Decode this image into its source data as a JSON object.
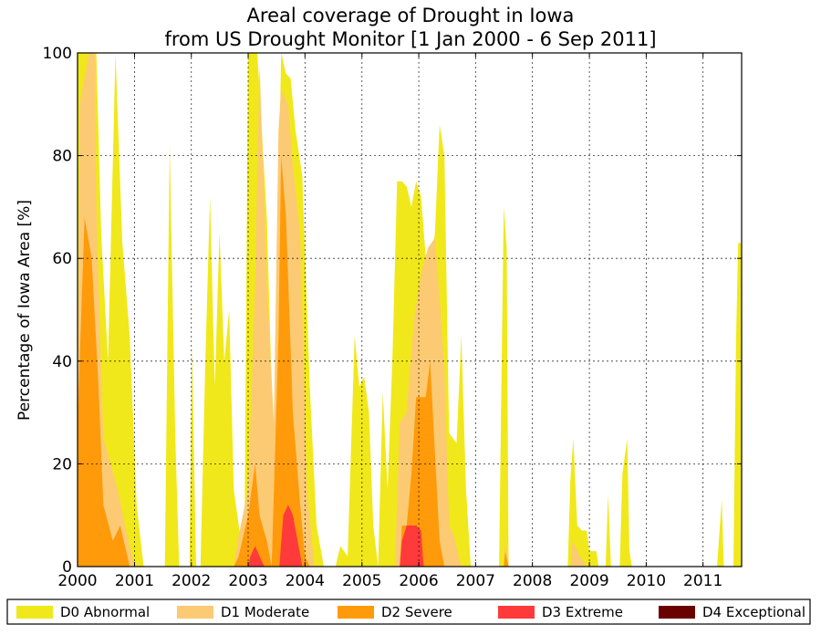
{
  "chart_data": {
    "type": "area",
    "title": "Areal coverage of Drought in Iowa",
    "subtitle": "from US Drought Monitor [1 Jan 2000 - 6 Sep 2011]",
    "ylabel": "Percentage of Iowa Area [%]",
    "xlabel": "",
    "xlim": [
      "2000-01-01",
      "2011-09-06"
    ],
    "ylim": [
      0,
      100
    ],
    "x_ticks": [
      "2000",
      "2001",
      "2002",
      "2003",
      "2004",
      "2005",
      "2006",
      "2007",
      "2008",
      "2009",
      "2010",
      "2011"
    ],
    "y_ticks": [
      "0",
      "20",
      "40",
      "60",
      "80",
      "100"
    ],
    "grid": true,
    "legend_position": "bottom",
    "series": [
      {
        "name": "D0 Abnormal",
        "color": "#f0e81a",
        "points": [
          [
            "2000-01-01",
            100
          ],
          [
            "2000-05-01",
            100
          ],
          [
            "2000-06-01",
            65
          ],
          [
            "2000-07-15",
            40
          ],
          [
            "2000-09-01",
            100
          ],
          [
            "2000-10-15",
            63
          ],
          [
            "2000-12-01",
            45
          ],
          [
            "2001-01-15",
            12
          ],
          [
            "2001-03-01",
            0
          ],
          [
            "2001-07-15",
            0
          ],
          [
            "2001-08-15",
            82
          ],
          [
            "2001-09-20",
            25
          ],
          [
            "2001-10-15",
            0
          ],
          [
            "2001-12-20",
            0
          ],
          [
            "2002-01-05",
            43
          ],
          [
            "2002-02-01",
            0
          ],
          [
            "2002-03-01",
            0
          ],
          [
            "2002-04-01",
            40
          ],
          [
            "2002-05-01",
            72
          ],
          [
            "2002-06-01",
            35
          ],
          [
            "2002-07-01",
            65
          ],
          [
            "2002-08-01",
            40
          ],
          [
            "2002-09-01",
            50
          ],
          [
            "2002-10-01",
            15
          ],
          [
            "2002-11-15",
            5
          ],
          [
            "2002-12-10",
            12
          ],
          [
            "2003-01-01",
            100
          ],
          [
            "2003-03-01",
            100
          ],
          [
            "2003-05-01",
            68
          ],
          [
            "2003-06-15",
            20
          ],
          [
            "2003-08-01",
            100
          ],
          [
            "2003-09-01",
            96
          ],
          [
            "2003-10-01",
            95
          ],
          [
            "2003-11-01",
            85
          ],
          [
            "2003-12-15",
            76
          ],
          [
            "2004-02-01",
            35
          ],
          [
            "2004-03-15",
            8
          ],
          [
            "2004-05-01",
            0
          ],
          [
            "2004-07-15",
            0
          ],
          [
            "2004-08-15",
            4
          ],
          [
            "2004-10-01",
            2
          ],
          [
            "2004-11-15",
            45
          ],
          [
            "2004-12-15",
            35
          ],
          [
            "2005-01-15",
            37
          ],
          [
            "2005-02-15",
            30
          ],
          [
            "2005-03-15",
            8
          ],
          [
            "2005-04-15",
            0
          ],
          [
            "2005-05-15",
            34
          ],
          [
            "2005-06-15",
            15
          ],
          [
            "2005-07-15",
            40
          ],
          [
            "2005-08-15",
            75
          ],
          [
            "2005-09-15",
            75
          ],
          [
            "2005-10-15",
            74
          ],
          [
            "2005-11-15",
            70
          ],
          [
            "2005-12-15",
            75
          ],
          [
            "2006-01-15",
            72
          ],
          [
            "2006-03-01",
            55
          ],
          [
            "2006-04-15",
            65
          ],
          [
            "2006-05-15",
            86
          ],
          [
            "2006-06-15",
            80
          ],
          [
            "2006-07-15",
            26
          ],
          [
            "2006-09-01",
            24
          ],
          [
            "2006-10-01",
            45
          ],
          [
            "2006-11-01",
            15
          ],
          [
            "2006-12-01",
            0
          ],
          [
            "2007-06-01",
            0
          ],
          [
            "2007-07-01",
            70
          ],
          [
            "2007-07-20",
            62
          ],
          [
            "2007-08-01",
            0
          ],
          [
            "2008-08-15",
            0
          ],
          [
            "2008-09-01",
            17
          ],
          [
            "2008-09-20",
            25
          ],
          [
            "2008-10-15",
            8
          ],
          [
            "2008-11-15",
            7
          ],
          [
            "2008-12-15",
            7
          ],
          [
            "2009-01-01",
            3
          ],
          [
            "2009-02-15",
            3
          ],
          [
            "2009-03-01",
            0
          ],
          [
            "2009-04-15",
            0
          ],
          [
            "2009-05-01",
            14
          ],
          [
            "2009-05-20",
            0
          ],
          [
            "2009-07-15",
            0
          ],
          [
            "2009-08-01",
            18
          ],
          [
            "2009-09-01",
            25
          ],
          [
            "2009-09-15",
            3
          ],
          [
            "2009-10-01",
            0
          ],
          [
            "2011-04-01",
            0
          ],
          [
            "2011-05-01",
            13
          ],
          [
            "2011-05-15",
            0
          ],
          [
            "2011-07-15",
            0
          ],
          [
            "2011-08-01",
            44
          ],
          [
            "2011-08-15",
            63
          ],
          [
            "2011-09-06",
            63
          ]
        ]
      },
      {
        "name": "D1 Moderate",
        "color": "#fcca73",
        "points": [
          [
            "2000-01-01",
            30
          ],
          [
            "2000-01-15",
            90
          ],
          [
            "2000-03-15",
            100
          ],
          [
            "2000-04-20",
            100
          ],
          [
            "2000-05-01",
            70
          ],
          [
            "2000-06-15",
            25
          ],
          [
            "2000-08-01",
            20
          ],
          [
            "2000-09-15",
            15
          ],
          [
            "2000-11-01",
            8
          ],
          [
            "2001-01-01",
            0
          ],
          [
            "2002-10-01",
            0
          ],
          [
            "2002-11-01",
            6
          ],
          [
            "2003-01-01",
            15
          ],
          [
            "2003-02-15",
            55
          ],
          [
            "2003-03-15",
            98
          ],
          [
            "2003-05-01",
            55
          ],
          [
            "2003-06-15",
            28
          ],
          [
            "2003-07-15",
            85
          ],
          [
            "2003-08-01",
            93
          ],
          [
            "2003-09-15",
            90
          ],
          [
            "2003-10-15",
            78
          ],
          [
            "2003-12-01",
            65
          ],
          [
            "2004-01-15",
            15
          ],
          [
            "2004-03-01",
            0
          ],
          [
            "2005-08-01",
            0
          ],
          [
            "2005-09-01",
            28
          ],
          [
            "2005-10-15",
            30
          ],
          [
            "2005-12-01",
            48
          ],
          [
            "2006-01-15",
            57
          ],
          [
            "2006-03-01",
            62
          ],
          [
            "2006-04-15",
            64
          ],
          [
            "2006-05-20",
            50
          ],
          [
            "2006-06-15",
            38
          ],
          [
            "2006-07-15",
            8
          ],
          [
            "2006-08-15",
            6
          ],
          [
            "2006-10-01",
            0
          ],
          [
            "2007-07-01",
            0
          ],
          [
            "2007-07-10",
            5
          ],
          [
            "2007-08-01",
            0
          ],
          [
            "2008-09-01",
            0
          ],
          [
            "2008-09-15",
            5
          ],
          [
            "2008-11-01",
            2
          ],
          [
            "2008-12-15",
            0
          ],
          [
            "2011-09-06",
            0
          ]
        ]
      },
      {
        "name": "D2 Severe",
        "color": "#ff9a0a",
        "points": [
          [
            "2000-01-01",
            28
          ],
          [
            "2000-02-15",
            68
          ],
          [
            "2000-04-01",
            60
          ],
          [
            "2000-05-15",
            35
          ],
          [
            "2000-06-15",
            12
          ],
          [
            "2000-08-15",
            5
          ],
          [
            "2000-10-01",
            8
          ],
          [
            "2000-12-01",
            0
          ],
          [
            "2002-10-01",
            0
          ],
          [
            "2002-11-01",
            2
          ],
          [
            "2003-01-01",
            10
          ],
          [
            "2003-02-15",
            20
          ],
          [
            "2003-03-15",
            10
          ],
          [
            "2003-05-01",
            5
          ],
          [
            "2003-06-01",
            0
          ],
          [
            "2003-07-15",
            45
          ],
          [
            "2003-08-01",
            80
          ],
          [
            "2003-09-01",
            68
          ],
          [
            "2003-10-15",
            30
          ],
          [
            "2003-12-01",
            12
          ],
          [
            "2004-01-01",
            2
          ],
          [
            "2004-02-01",
            0
          ],
          [
            "2005-09-01",
            0
          ],
          [
            "2005-09-15",
            8
          ],
          [
            "2005-10-15",
            8
          ],
          [
            "2005-11-15",
            18
          ],
          [
            "2005-12-15",
            33
          ],
          [
            "2006-02-15",
            33
          ],
          [
            "2006-03-15",
            40
          ],
          [
            "2006-04-15",
            22
          ],
          [
            "2006-05-15",
            5
          ],
          [
            "2006-06-15",
            0
          ],
          [
            "2007-07-01",
            0
          ],
          [
            "2007-07-10",
            3
          ],
          [
            "2007-08-01",
            0
          ],
          [
            "2011-09-06",
            0
          ]
        ]
      },
      {
        "name": "D3 Extreme",
        "color": "#ff3a3a",
        "points": [
          [
            "2000-01-01",
            0
          ],
          [
            "2003-01-01",
            0
          ],
          [
            "2003-01-15",
            2
          ],
          [
            "2003-02-15",
            4
          ],
          [
            "2003-03-15",
            2
          ],
          [
            "2003-04-15",
            0
          ],
          [
            "2003-07-20",
            0
          ],
          [
            "2003-08-15",
            10
          ],
          [
            "2003-09-15",
            12
          ],
          [
            "2003-10-15",
            10
          ],
          [
            "2003-11-15",
            5
          ],
          [
            "2003-12-15",
            0
          ],
          [
            "2005-09-01",
            0
          ],
          [
            "2005-09-15",
            5
          ],
          [
            "2005-10-15",
            8
          ],
          [
            "2005-12-15",
            8
          ],
          [
            "2006-01-15",
            7
          ],
          [
            "2006-02-01",
            0
          ],
          [
            "2011-09-06",
            0
          ]
        ]
      },
      {
        "name": "D4 Exceptional",
        "color": "#6a0000",
        "points": [
          [
            "2000-01-01",
            0
          ],
          [
            "2011-09-06",
            0
          ]
        ]
      }
    ]
  }
}
